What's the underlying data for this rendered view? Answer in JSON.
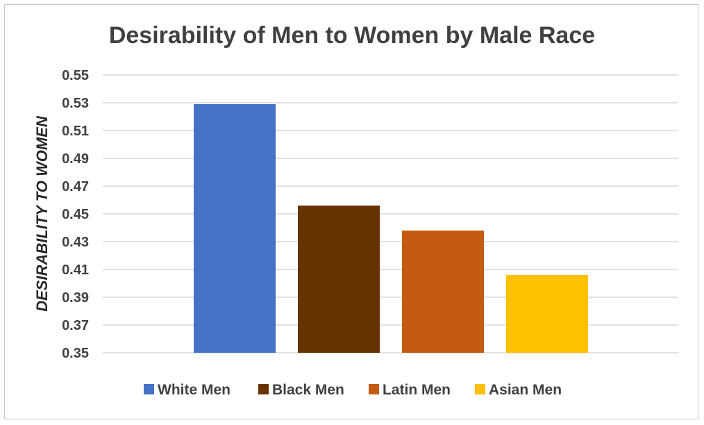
{
  "chart_data": {
    "type": "bar",
    "title": "Desirability of Men to Women by Male Race",
    "xlabel": "",
    "ylabel": "DESIRABILITY TO WOMEN",
    "ylim": [
      0.35,
      0.55
    ],
    "yticks": [
      "0.35",
      "0.37",
      "0.39",
      "0.41",
      "0.43",
      "0.45",
      "0.47",
      "0.49",
      "0.51",
      "0.53",
      "0.55"
    ],
    "grid": true,
    "legend_position": "bottom",
    "series": [
      {
        "name": "White Men",
        "value": 0.529,
        "color": "#4472c4"
      },
      {
        "name": "Black Men",
        "value": 0.456,
        "color": "#663300"
      },
      {
        "name": "Latin Men",
        "value": 0.438,
        "color": "#c55a11"
      },
      {
        "name": "Asian Men",
        "value": 0.406,
        "color": "#ffc000"
      }
    ]
  }
}
